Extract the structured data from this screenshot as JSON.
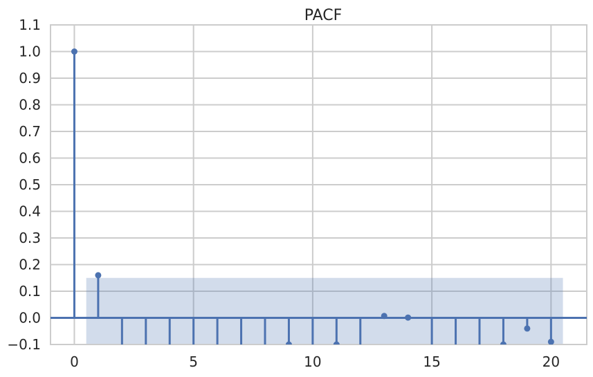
{
  "chart_data": {
    "type": "stem",
    "title": "PACF",
    "xlabel": "",
    "ylabel": "",
    "xlim": [
      -1,
      21.5
    ],
    "ylim": [
      -0.1,
      1.1
    ],
    "x_ticks": [
      0,
      5,
      10,
      15,
      20
    ],
    "y_ticks": [
      -0.1,
      0.0,
      0.1,
      0.2,
      0.3,
      0.4,
      0.5,
      0.6,
      0.7,
      0.8,
      0.9,
      1.0,
      1.1
    ],
    "x_tick_labels": [
      "0",
      "5",
      "10",
      "15",
      "20"
    ],
    "y_tick_labels": [
      "−0.1",
      "0.0",
      "0.1",
      "0.2",
      "0.3",
      "0.4",
      "0.5",
      "0.6",
      "0.7",
      "0.8",
      "0.9",
      "1.0",
      "1.1"
    ],
    "grid": true,
    "confidence_band": {
      "x_start": 0.5,
      "x_end": 20.5,
      "upper": 0.15,
      "lower": -0.15
    },
    "series": [
      {
        "name": "PACF",
        "lags": [
          0,
          1,
          2,
          3,
          4,
          5,
          6,
          7,
          8,
          9,
          10,
          11,
          12,
          13,
          14,
          15,
          16,
          17,
          18,
          19,
          20
        ],
        "values": [
          1.0,
          0.16,
          -0.15,
          -0.14,
          -0.13,
          -0.15,
          -0.12,
          -0.13,
          -0.14,
          -0.1,
          -0.15,
          -0.1,
          -0.14,
          0.007,
          0.001,
          -0.15,
          -0.13,
          -0.14,
          -0.1,
          -0.04,
          -0.09
        ]
      }
    ],
    "colors": {
      "stem": "#4c72b0",
      "band": "#4c72b0",
      "grid": "#cccccc",
      "zero_line": "#4c72b0"
    }
  }
}
